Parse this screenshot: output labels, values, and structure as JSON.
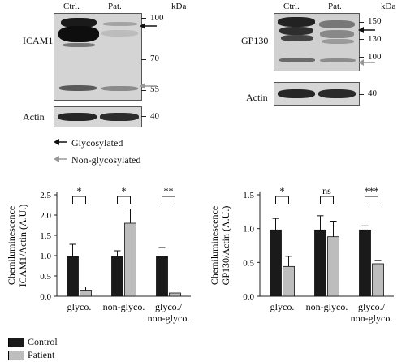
{
  "left_blot": {
    "lanes": [
      "Ctrl.",
      "Pat."
    ],
    "kda_label": "kDa",
    "protein": "ICAM1",
    "markers": [
      "100",
      "70",
      "55"
    ],
    "actin_label": "Actin",
    "actin_marker": "40"
  },
  "right_blot": {
    "lanes": [
      "Ctrl.",
      "Pat."
    ],
    "kda_label": "kDa",
    "protein": "GP130",
    "markers": [
      "150",
      "130",
      "100"
    ],
    "actin_label": "Actin",
    "actin_marker": "40"
  },
  "arrow_legend": {
    "glyco": "Glycosylated",
    "nonglyco": "Non-glycosylated",
    "colors": {
      "glyco": "#111111",
      "nonglyco": "#999999"
    }
  },
  "bar_legend": {
    "control": "Control",
    "patient": "Patient",
    "colors": {
      "control": "#1a1a1a",
      "patient": "#bdbdbd"
    }
  },
  "chart_data": [
    {
      "type": "bar",
      "ylabel_lines": [
        "Chemiluminescence",
        "ICAM1/Actin (A.U.)"
      ],
      "ylim": [
        0,
        2.5
      ],
      "yticks": [
        "0.0",
        "0.5",
        "1.0",
        "1.5",
        "2.0",
        "2.5"
      ],
      "categories": [
        [
          "glyco."
        ],
        [
          "non-glyco."
        ],
        [
          "glyco./",
          "non-glyco."
        ]
      ],
      "series": [
        {
          "name": "Control",
          "values": [
            0.98,
            0.98,
            0.98
          ],
          "errors": [
            0.3,
            0.14,
            0.22
          ]
        },
        {
          "name": "Patient",
          "values": [
            0.15,
            1.8,
            0.08
          ],
          "errors": [
            0.08,
            0.35,
            0.05
          ]
        }
      ],
      "significance": [
        "*",
        "*",
        "**"
      ]
    },
    {
      "type": "bar",
      "ylabel_lines": [
        "Chemiluminescence",
        "GP130/Actin (A.U.)"
      ],
      "ylim": [
        0,
        1.5
      ],
      "yticks": [
        "0.0",
        "0.5",
        "1.0",
        "1.5"
      ],
      "categories": [
        [
          "glyco."
        ],
        [
          "non-glyco."
        ],
        [
          "glyco./",
          "non-glyco."
        ]
      ],
      "series": [
        {
          "name": "Control",
          "values": [
            0.98,
            0.98,
            0.98
          ],
          "errors": [
            0.17,
            0.21,
            0.06
          ]
        },
        {
          "name": "Patient",
          "values": [
            0.44,
            0.88,
            0.48
          ],
          "errors": [
            0.15,
            0.23,
            0.05
          ]
        }
      ],
      "significance": [
        "*",
        "ns",
        "***"
      ]
    }
  ]
}
